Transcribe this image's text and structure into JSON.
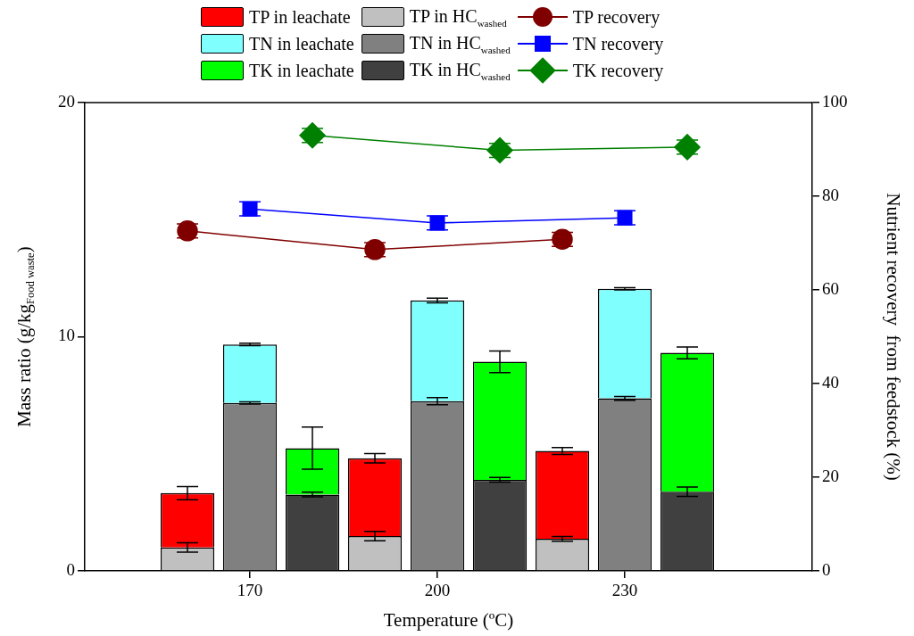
{
  "chart_data": {
    "type": "bar",
    "stacked": true,
    "xlabel": "Temperature (ºC)",
    "ylabel": "Mass ratio (g/kg$_{Food waste}$)",
    "y2label": "Nutrient recovery  from feedstock (%)",
    "categories": [
      null,
      "170",
      null,
      null,
      "200",
      null,
      null,
      "230",
      null
    ],
    "ylim": [
      0,
      20
    ],
    "yticks": [
      0,
      10,
      20
    ],
    "y2lim": [
      0,
      100
    ],
    "y2ticks": [
      0,
      20,
      40,
      60,
      80,
      100
    ],
    "legend": "top",
    "grid": false,
    "series": [
      {
        "name": "TP in HC$_{washed}$",
        "color": "#c0c0c0",
        "values": [
          1.0,
          null,
          null,
          1.49,
          null,
          null,
          1.37,
          null,
          null
        ],
        "errors": [
          0.2,
          null,
          null,
          0.2,
          null,
          null,
          0.1,
          null,
          null
        ]
      },
      {
        "name": "TP in leachate",
        "color": "#ff0000",
        "values": [
          2.32,
          null,
          null,
          3.32,
          null,
          null,
          3.75,
          null,
          null
        ],
        "errors": [
          0.28,
          null,
          null,
          0.2,
          null,
          null,
          0.15,
          null,
          null
        ]
      },
      {
        "name": "TN in HC$_{washed}$",
        "color": "#808080",
        "values": [
          null,
          7.17,
          null,
          null,
          7.25,
          null,
          null,
          7.37,
          null
        ],
        "errors": [
          null,
          0.05,
          null,
          null,
          0.15,
          null,
          null,
          0.08,
          null
        ]
      },
      {
        "name": "TN in leachate",
        "color": "#80ffff",
        "values": [
          null,
          2.5,
          null,
          null,
          4.3,
          null,
          null,
          4.68,
          null
        ],
        "errors": [
          null,
          0.05,
          null,
          null,
          0.1,
          null,
          null,
          0.05,
          null
        ]
      },
      {
        "name": "TK in HC$_{washed}$",
        "color": "#404040",
        "values": [
          null,
          null,
          3.26,
          null,
          null,
          3.89,
          null,
          null,
          3.38
        ],
        "errors": [
          null,
          null,
          0.1,
          null,
          null,
          0.1,
          null,
          null,
          0.2
        ]
      },
      {
        "name": "TK in leachate",
        "color": "#00ff00",
        "values": [
          null,
          null,
          1.98,
          null,
          null,
          5.04,
          null,
          null,
          5.93
        ],
        "errors": [
          null,
          null,
          0.9,
          null,
          null,
          0.46,
          null,
          null,
          0.25
        ]
      },
      {
        "name": "TP recovery",
        "type": "line",
        "axis": "y2",
        "marker": "circle",
        "color": "#800000",
        "values": [
          72.6,
          null,
          null,
          68.6,
          null,
          null,
          70.8,
          null,
          null
        ],
        "errors": [
          1.5,
          null,
          null,
          1.5,
          null,
          null,
          1.5,
          null,
          null
        ]
      },
      {
        "name": "TN recovery",
        "type": "line",
        "axis": "y2",
        "marker": "square",
        "color": "#0000ff",
        "values": [
          null,
          77.3,
          null,
          null,
          74.3,
          null,
          null,
          75.4,
          null
        ],
        "errors": [
          null,
          1.5,
          null,
          null,
          1.5,
          null,
          null,
          1.5,
          null
        ]
      },
      {
        "name": "TK recovery",
        "type": "line",
        "axis": "y2",
        "marker": "diamond",
        "color": "#008000",
        "values": [
          null,
          null,
          93.0,
          null,
          null,
          89.8,
          null,
          null,
          90.5
        ],
        "errors": [
          null,
          null,
          1.5,
          null,
          null,
          1.5,
          null,
          null,
          1.5
        ]
      }
    ]
  }
}
